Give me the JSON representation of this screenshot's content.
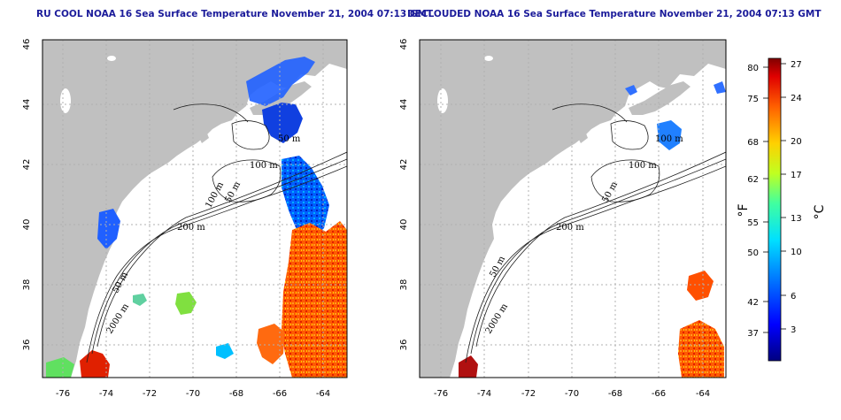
{
  "titles": {
    "left": "RU COOL NOAA 16 Sea Surface Temperature November 21, 2004 07:13 GMT",
    "right": "DECLOUDED NOAA 16 Sea Surface Temperature November 21, 2004 07:13 GMT"
  },
  "map": {
    "lon_range": [
      -77.2,
      -63.0
    ],
    "lat_range": [
      35.0,
      46.0
    ],
    "lon_ticks": [
      "-76",
      "-74",
      "-72",
      "-70",
      "-68",
      "-66",
      "-64"
    ],
    "lat_ticks": [
      "36",
      "38",
      "40",
      "42",
      "44",
      "46"
    ],
    "land_color": "#c0c0c0",
    "ocean_color": "#ffffff",
    "grid": "dotted"
  },
  "contour_labels": {
    "left": [
      "50 m",
      "100 m",
      "100 m",
      "50 m",
      "200 m",
      "50 m",
      "2000 m"
    ],
    "right": [
      "100 m",
      "100 m",
      "50 m",
      "200 m",
      "50 m",
      "2000 m"
    ]
  },
  "colorbar": {
    "f_label": "°F",
    "c_label": "°C",
    "f_ticks": [
      "80",
      "75",
      "68",
      "62",
      "55",
      "50",
      "42",
      "37"
    ],
    "c_ticks": [
      "27",
      "24",
      "20",
      "17",
      "13",
      "10",
      "6",
      "3"
    ],
    "colors": [
      "#0000a0",
      "#0040ff",
      "#00a0ff",
      "#00e0e0",
      "#40ff80",
      "#c0ff00",
      "#ffd000",
      "#ff7000",
      "#e02000",
      "#900000"
    ]
  }
}
